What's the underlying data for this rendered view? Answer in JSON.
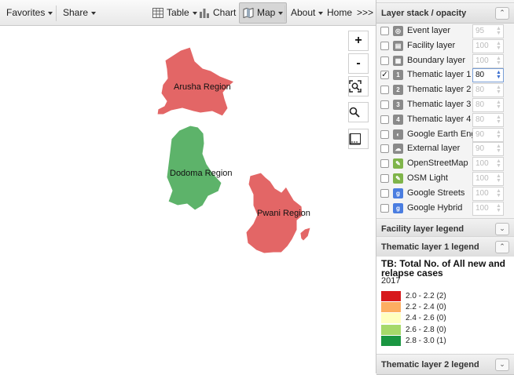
{
  "toolbar": {
    "favorites": "Favorites",
    "share": "Share",
    "table": "Table",
    "chart": "Chart",
    "map": "Map",
    "about": "About",
    "home": "Home",
    "more": ">>>"
  },
  "map_controls": {
    "zoom_in": "+",
    "zoom_out": "-"
  },
  "regions": [
    {
      "name": "Arusha Region",
      "color": "#de4b4b"
    },
    {
      "name": "Dodoma Region",
      "color": "#4bab5a"
    },
    {
      "name": "Pwani Region",
      "color": "#de4b4b"
    }
  ],
  "layer_panel": {
    "title": "Layer stack / opacity",
    "layers": [
      {
        "name": "Event layer",
        "opacity": "95",
        "checked": false,
        "icon": "event-icon"
      },
      {
        "name": "Facility layer",
        "opacity": "100",
        "checked": false,
        "icon": "facility-icon"
      },
      {
        "name": "Boundary layer",
        "opacity": "100",
        "checked": false,
        "icon": "boundary-icon"
      },
      {
        "name": "Thematic layer 1",
        "opacity": "80",
        "checked": true,
        "icon": "thematic-1-icon"
      },
      {
        "name": "Thematic layer 2",
        "opacity": "80",
        "checked": false,
        "icon": "thematic-2-icon"
      },
      {
        "name": "Thematic layer 3",
        "opacity": "80",
        "checked": false,
        "icon": "thematic-3-icon"
      },
      {
        "name": "Thematic layer 4",
        "opacity": "80",
        "checked": false,
        "icon": "thematic-4-icon"
      },
      {
        "name": "Google Earth Engine",
        "opacity": "90",
        "checked": false,
        "icon": "earth-engine-icon"
      },
      {
        "name": "External layer",
        "opacity": "90",
        "checked": false,
        "icon": "external-icon"
      },
      {
        "name": "OpenStreetMap",
        "opacity": "100",
        "checked": false,
        "icon": "osm-icon"
      },
      {
        "name": "OSM Light",
        "opacity": "100",
        "checked": false,
        "icon": "osm-light-icon"
      },
      {
        "name": "Google Streets",
        "opacity": "100",
        "checked": false,
        "icon": "google-icon"
      },
      {
        "name": "Google Hybrid",
        "opacity": "100",
        "checked": false,
        "icon": "google-icon"
      }
    ],
    "icon_glyphs": [
      "◎",
      "▤",
      "▦",
      "1",
      "2",
      "3",
      "4",
      "◐",
      "☁",
      "✎",
      "✎",
      "g",
      "g"
    ],
    "icon_colors": [
      "#8a8a8a",
      "#8a8a8a",
      "#8a8a8a",
      "#8a8a8a",
      "#8a8a8a",
      "#8a8a8a",
      "#8a8a8a",
      "#8a8a8a",
      "#8a8a8a",
      "#7fb44a",
      "#7fb44a",
      "#4a7de0",
      "#4a7de0"
    ]
  },
  "facility_legend": {
    "title": "Facility layer legend"
  },
  "thematic1_legend": {
    "title": "Thematic layer 1 legend",
    "heading": "TB: Total No. of All new and relapse cases",
    "year": "2017",
    "items": [
      {
        "label": "2.0 - 2.2 (2)",
        "color": "#d7191c"
      },
      {
        "label": "2.2 - 2.4 (0)",
        "color": "#fdae61"
      },
      {
        "label": "2.4 - 2.6 (0)",
        "color": "#ffffbf"
      },
      {
        "label": "2.6 - 2.8 (0)",
        "color": "#a6d96a"
      },
      {
        "label": "2.8 - 3.0 (1)",
        "color": "#1a9641"
      }
    ]
  },
  "thematic2_legend": {
    "title": "Thematic layer 2 legend"
  }
}
